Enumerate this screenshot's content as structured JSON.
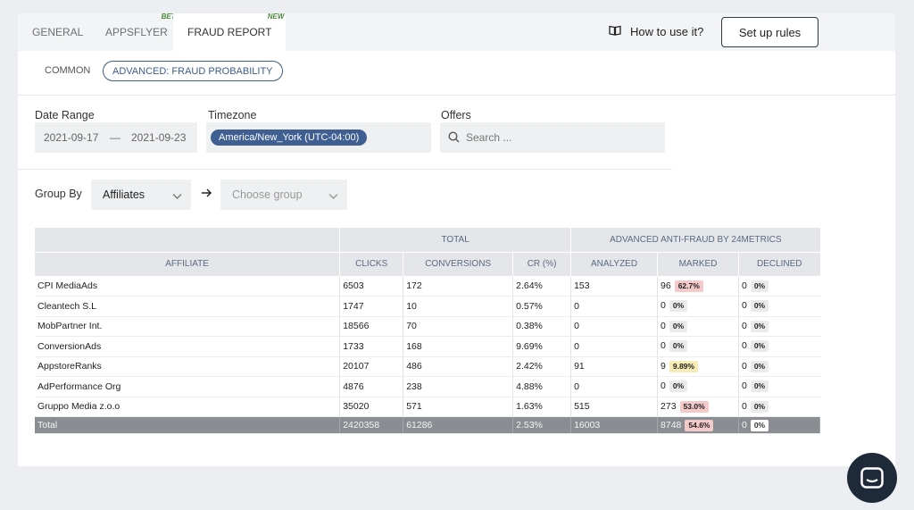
{
  "tabs": [
    {
      "label": "GENERAL",
      "badge": ""
    },
    {
      "label": "APPSFLYER",
      "badge": "BETA"
    },
    {
      "label": "FRAUD REPORT",
      "badge": "NEW"
    }
  ],
  "header": {
    "howto_label": "How to use it?",
    "setup_label": "Set up rules"
  },
  "subtabs": [
    "COMMON",
    "ADVANCED: FRAUD PROBABILITY"
  ],
  "filters": {
    "date_range_label": "Date Range",
    "date_from": "2021-09-17",
    "date_sep": "—",
    "date_to": "2021-09-23",
    "timezone_label": "Timezone",
    "timezone_value": "America/New_York (UTC-04:00)",
    "offers_label": "Offers",
    "offers_placeholder": "Search ..."
  },
  "group": {
    "label": "Group By",
    "selected": "Affiliates",
    "second_placeholder": "Choose group"
  },
  "table": {
    "group_total": "TOTAL",
    "group_anti": "ADVANCED ANTI-FRAUD BY 24METRICS",
    "columns": [
      "AFFILIATE",
      "CLICKS",
      "CONVERSIONS",
      "CR (%)",
      "ANALYZED",
      "MARKED",
      "DECLINED"
    ],
    "rows": [
      {
        "affiliate": "CPI MediaAds",
        "clicks": "6503",
        "conversions": "172",
        "cr": "2.64%",
        "analyzed": "153",
        "marked": "96",
        "marked_pct": "62.7%",
        "marked_tone": "red",
        "declined": "0",
        "declined_pct": "0%"
      },
      {
        "affiliate": "Cleantech S.L",
        "clicks": "1747",
        "conversions": "10",
        "cr": "0.57%",
        "analyzed": "0",
        "marked": "0",
        "marked_pct": "0%",
        "marked_tone": "grey",
        "declined": "0",
        "declined_pct": "0%"
      },
      {
        "affiliate": "MobPartner Int.",
        "clicks": "18566",
        "conversions": "70",
        "cr": "0.38%",
        "analyzed": "0",
        "marked": "0",
        "marked_pct": "0%",
        "marked_tone": "grey",
        "declined": "0",
        "declined_pct": "0%"
      },
      {
        "affiliate": "ConversionAds",
        "clicks": "1733",
        "conversions": "168",
        "cr": "9.69%",
        "analyzed": "0",
        "marked": "0",
        "marked_pct": "0%",
        "marked_tone": "grey",
        "declined": "0",
        "declined_pct": "0%"
      },
      {
        "affiliate": "AppstoreRanks",
        "clicks": "20107",
        "conversions": "486",
        "cr": "2.42%",
        "analyzed": "91",
        "marked": "9",
        "marked_pct": "9.89%",
        "marked_tone": "yellow",
        "declined": "0",
        "declined_pct": "0%"
      },
      {
        "affiliate": "AdPerformance Org",
        "clicks": "4876",
        "conversions": "238",
        "cr": "4.88%",
        "analyzed": "0",
        "marked": "0",
        "marked_pct": "0%",
        "marked_tone": "grey",
        "declined": "0",
        "declined_pct": "0%"
      },
      {
        "affiliate": "Gruppo Media z.o.o",
        "clicks": "35020",
        "conversions": "571",
        "cr": "1.63%",
        "analyzed": "515",
        "marked": "273",
        "marked_pct": "53.0%",
        "marked_tone": "red",
        "declined": "0",
        "declined_pct": "0%"
      }
    ],
    "total": {
      "affiliate": "Total",
      "clicks": "2420358",
      "conversions": "61286",
      "cr": "2.53%",
      "analyzed": "16003",
      "marked": "8748",
      "marked_pct": "54.6%",
      "declined": "0",
      "declined_pct": "0%"
    }
  },
  "colors": {
    "accent": "#3f5f93",
    "marked_red": "#f4c9c9",
    "marked_yellow": "#f7ecb6",
    "chat": "#1e2a3a"
  },
  "icons": [
    "book-icon",
    "search-icon",
    "chevron-down-icon",
    "arrow-right-icon",
    "chat-icon"
  ]
}
